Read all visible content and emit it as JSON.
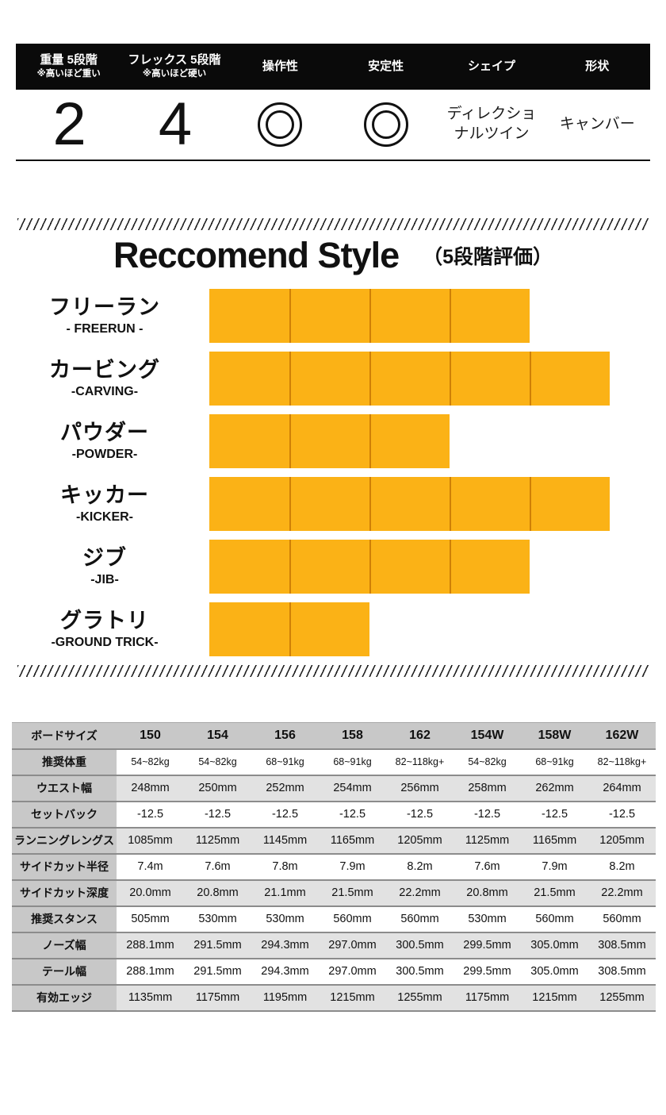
{
  "spec_summary": {
    "columns": [
      {
        "label": "重量 5段階",
        "sublabel": "※高いほど重い",
        "value": "2"
      },
      {
        "label": "フレックス 5段階",
        "sublabel": "※高いほど硬い",
        "value": "4"
      },
      {
        "label": "操作性",
        "value_icon": "double-circle"
      },
      {
        "label": "安定性",
        "value_icon": "double-circle"
      },
      {
        "label": "シェイプ",
        "value_lines": [
          "ディレクショ",
          "ナルツイン"
        ]
      },
      {
        "label": "形状",
        "value_lines": [
          "キャンバー"
        ]
      }
    ]
  },
  "chart_data": {
    "type": "bar",
    "title": "Reccomend Style",
    "subtitle": "（5段階評価）",
    "scale_max": 5,
    "categories": [
      "フリーラン",
      "カービング",
      "パウダー",
      "キッカー",
      "ジブ",
      "グラトリ"
    ],
    "categories_en": [
      "- FREERUN -",
      "-CARVING-",
      "-POWDER-",
      "-KICKER-",
      "-JIB-",
      "-GROUND TRICK-"
    ],
    "values": [
      4,
      5,
      3,
      5,
      4,
      2
    ],
    "bar_color": "#FBB216",
    "bar_divider_color": "#CF8006"
  },
  "table": {
    "header": [
      "ボードサイズ",
      "150",
      "154",
      "156",
      "158",
      "162",
      "154W",
      "158W",
      "162W"
    ],
    "rows": [
      {
        "label": "推奨体重",
        "values": [
          "54~82kg",
          "54~82kg",
          "68~91kg",
          "68~91kg",
          "82~118kg+",
          "54~82kg",
          "68~91kg",
          "82~118kg+"
        ]
      },
      {
        "label": "ウエスト幅",
        "values": [
          "248mm",
          "250mm",
          "252mm",
          "254mm",
          "256mm",
          "258mm",
          "262mm",
          "264mm"
        ]
      },
      {
        "label": "セットバック",
        "values": [
          "-12.5",
          "-12.5",
          "-12.5",
          "-12.5",
          "-12.5",
          "-12.5",
          "-12.5",
          "-12.5"
        ]
      },
      {
        "label": "ランニングレングス",
        "values": [
          "1085mm",
          "1125mm",
          "1145mm",
          "1165mm",
          "1205mm",
          "1125mm",
          "1165mm",
          "1205mm"
        ]
      },
      {
        "label": "サイドカット半径",
        "values": [
          "7.4m",
          "7.6m",
          "7.8m",
          "7.9m",
          "8.2m",
          "7.6m",
          "7.9m",
          "8.2m"
        ]
      },
      {
        "label": "サイドカット深度",
        "values": [
          "20.0mm",
          "20.8mm",
          "21.1mm",
          "21.5mm",
          "22.2mm",
          "20.8mm",
          "21.5mm",
          "22.2mm"
        ]
      },
      {
        "label": "推奨スタンス",
        "values": [
          "505mm",
          "530mm",
          "530mm",
          "560mm",
          "560mm",
          "530mm",
          "560mm",
          "560mm"
        ]
      },
      {
        "label": "ノーズ幅",
        "values": [
          "288.1mm",
          "291.5mm",
          "294.3mm",
          "297.0mm",
          "300.5mm",
          "299.5mm",
          "305.0mm",
          "308.5mm"
        ]
      },
      {
        "label": "テール幅",
        "values": [
          "288.1mm",
          "291.5mm",
          "294.3mm",
          "297.0mm",
          "300.5mm",
          "299.5mm",
          "305.0mm",
          "308.5mm"
        ]
      },
      {
        "label": "有効エッジ",
        "values": [
          "1135mm",
          "1175mm",
          "1195mm",
          "1215mm",
          "1255mm",
          "1175mm",
          "1215mm",
          "1255mm"
        ]
      }
    ]
  }
}
